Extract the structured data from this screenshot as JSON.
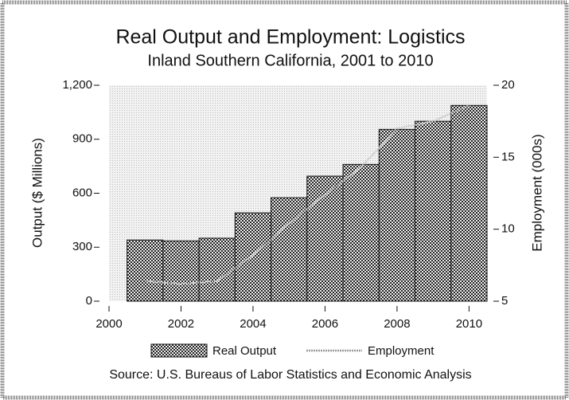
{
  "chart_data": {
    "type": "bar",
    "title": "Real Output and Employment: Logistics",
    "subtitle": "Inland Southern California, 2001 to 2010",
    "ylabel": "Output ($ Millions)",
    "y2label": "Employment (000s)",
    "source": "Source: U.S. Bureaus of Labor Statistics and Economic Analysis",
    "x": [
      2001,
      2002,
      2003,
      2004,
      2005,
      2006,
      2007,
      2008,
      2009,
      2010
    ],
    "xlim": [
      2000,
      2010.5
    ],
    "xticks": [
      2000,
      2002,
      2004,
      2006,
      2008,
      2010
    ],
    "ylim": [
      0,
      1200
    ],
    "yticks": [
      0,
      300,
      600,
      900,
      {
        "value": 1200,
        "label": "1,200"
      }
    ],
    "y2lim": [
      5,
      20
    ],
    "y2ticks": [
      5,
      10,
      15,
      20
    ],
    "series": [
      {
        "name": "Real Output",
        "type": "bar",
        "color": "#555555",
        "values": [
          340,
          335,
          350,
          491,
          575,
          695,
          760,
          955,
          1000,
          1088
        ]
      },
      {
        "name": "Employment",
        "type": "line",
        "axis": "y2",
        "color": "#cccccc",
        "values": [
          6.4,
          6.2,
          6.4,
          8.2,
          10.4,
          12.4,
          14.3,
          17.0,
          17.5,
          18.6
        ]
      }
    ]
  }
}
